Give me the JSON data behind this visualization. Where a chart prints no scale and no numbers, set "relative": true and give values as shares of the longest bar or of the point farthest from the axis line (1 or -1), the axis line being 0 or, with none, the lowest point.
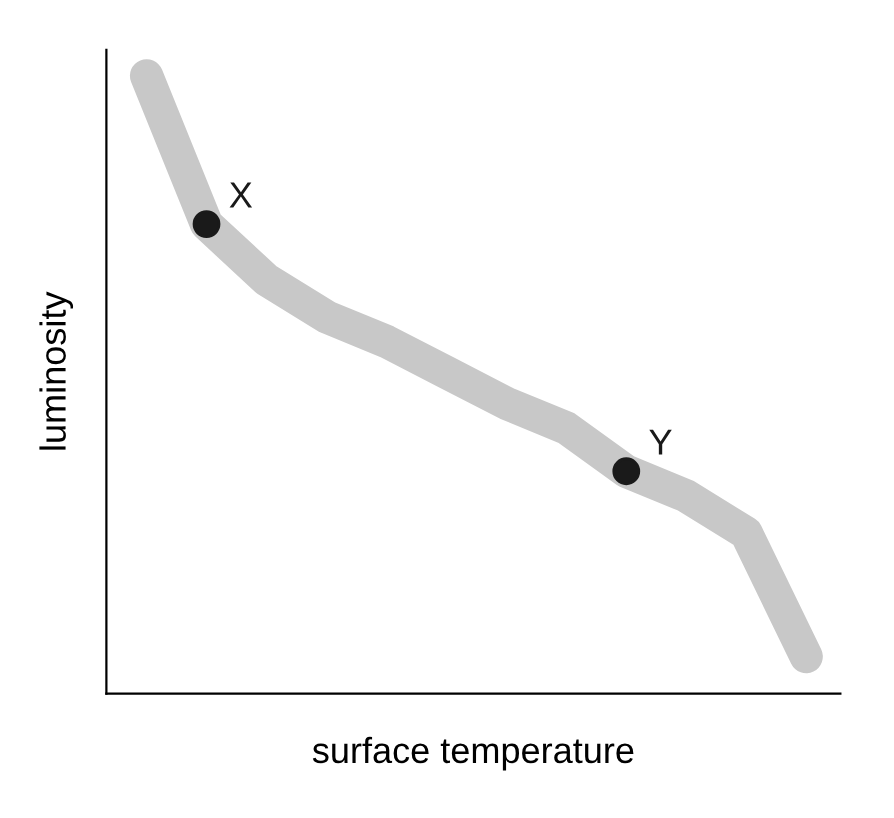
{
  "chart_data": {
    "type": "line",
    "relative": true,
    "xlabel": "surface temperature",
    "ylabel": "luminosity",
    "categories": [
      null,
      null,
      null,
      null,
      null,
      null,
      null,
      null,
      null,
      null,
      null,
      null
    ],
    "grid": false,
    "legend": false,
    "line_style": "solid",
    "series": [
      {
        "color": "#c8c8c8",
        "values": [
          1,
          0.76,
          0.67,
          0.61,
          0.57,
          0.52,
          0.47,
          0.43,
          0.36,
          0.32,
          0.26,
          0.06
        ]
      }
    ],
    "annotations": [
      {
        "text": "X",
        "y": 0.76
      },
      {
        "text": "Y",
        "y": 0.36
      }
    ]
  }
}
